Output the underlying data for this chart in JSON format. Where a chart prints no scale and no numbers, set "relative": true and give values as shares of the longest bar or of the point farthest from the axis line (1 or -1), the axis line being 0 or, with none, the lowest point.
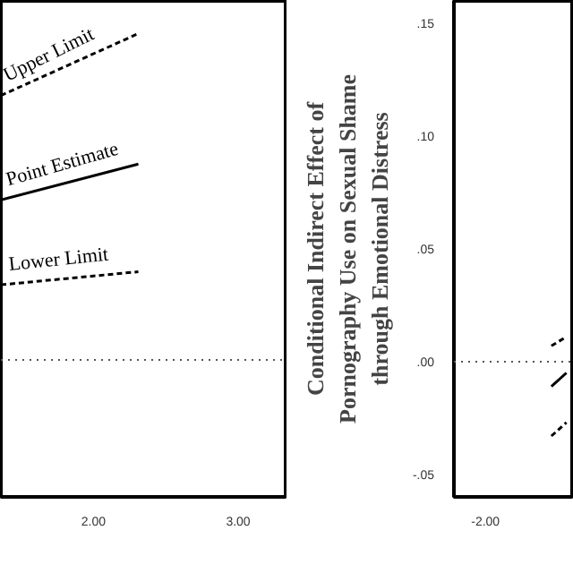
{
  "chart_data": [
    {
      "type": "line",
      "relative": true,
      "x": [
        1.36,
        2.31
      ],
      "xlim": [
        1.36,
        3.34
      ],
      "xticks": [
        {
          "value": 2,
          "label": "2.00"
        },
        {
          "value": 3,
          "label": "3.00"
        }
      ],
      "grid": false,
      "tick_labels": "x",
      "series": [
        {
          "name": "Upper Limit",
          "color": "#000000",
          "line_style": "dashed",
          "values": [
            0.81,
            1.0
          ]
        },
        {
          "name": "Point Estimate",
          "color": "#000000",
          "line_style": "solid",
          "values": [
            0.49,
            0.6
          ]
        },
        {
          "name": "Lower Limit",
          "color": "#000000",
          "line_style": "dashed",
          "values": [
            0.23,
            0.27
          ]
        }
      ],
      "ref_lines": [
        {
          "axis": "y",
          "value": 0,
          "color": "#555555",
          "line_style": "dotted"
        }
      ]
    },
    {
      "type": "line",
      "ylabel": "Conditional Indirect Effect of Pornography Use on Sexual Shame through Emotional Distress",
      "categories": [
        null,
        null,
        null,
        null,
        null,
        null,
        null,
        null
      ],
      "annotations": [
        "-2.00"
      ],
      "ylim": [
        -0.06,
        0.16
      ],
      "yticks": [
        {
          "value": -0.05,
          "label": "-.05"
        },
        {
          "value": 0,
          "label": ".00"
        },
        {
          "value": 0.05,
          "label": ".05"
        },
        {
          "value": 0.1,
          "label": ".10"
        },
        {
          "value": 0.15,
          "label": ".15"
        }
      ],
      "grid": false,
      "series": [
        {
          "color": "#000000",
          "line_style": "dashed",
          "values": [
            null,
            null,
            null,
            null,
            null,
            null,
            0.007,
            0.011
          ]
        },
        {
          "color": "#000000",
          "line_style": "solid",
          "values": [
            null,
            null,
            null,
            null,
            null,
            null,
            -0.011,
            -0.005
          ]
        },
        {
          "color": "#000000",
          "line_style": "dashed",
          "values": [
            null,
            null,
            null,
            null,
            null,
            null,
            -0.033,
            -0.027
          ]
        }
      ],
      "ref_lines": [
        {
          "axis": "y",
          "value": 0,
          "color": "#555555",
          "line_style": "dotted"
        }
      ]
    }
  ]
}
